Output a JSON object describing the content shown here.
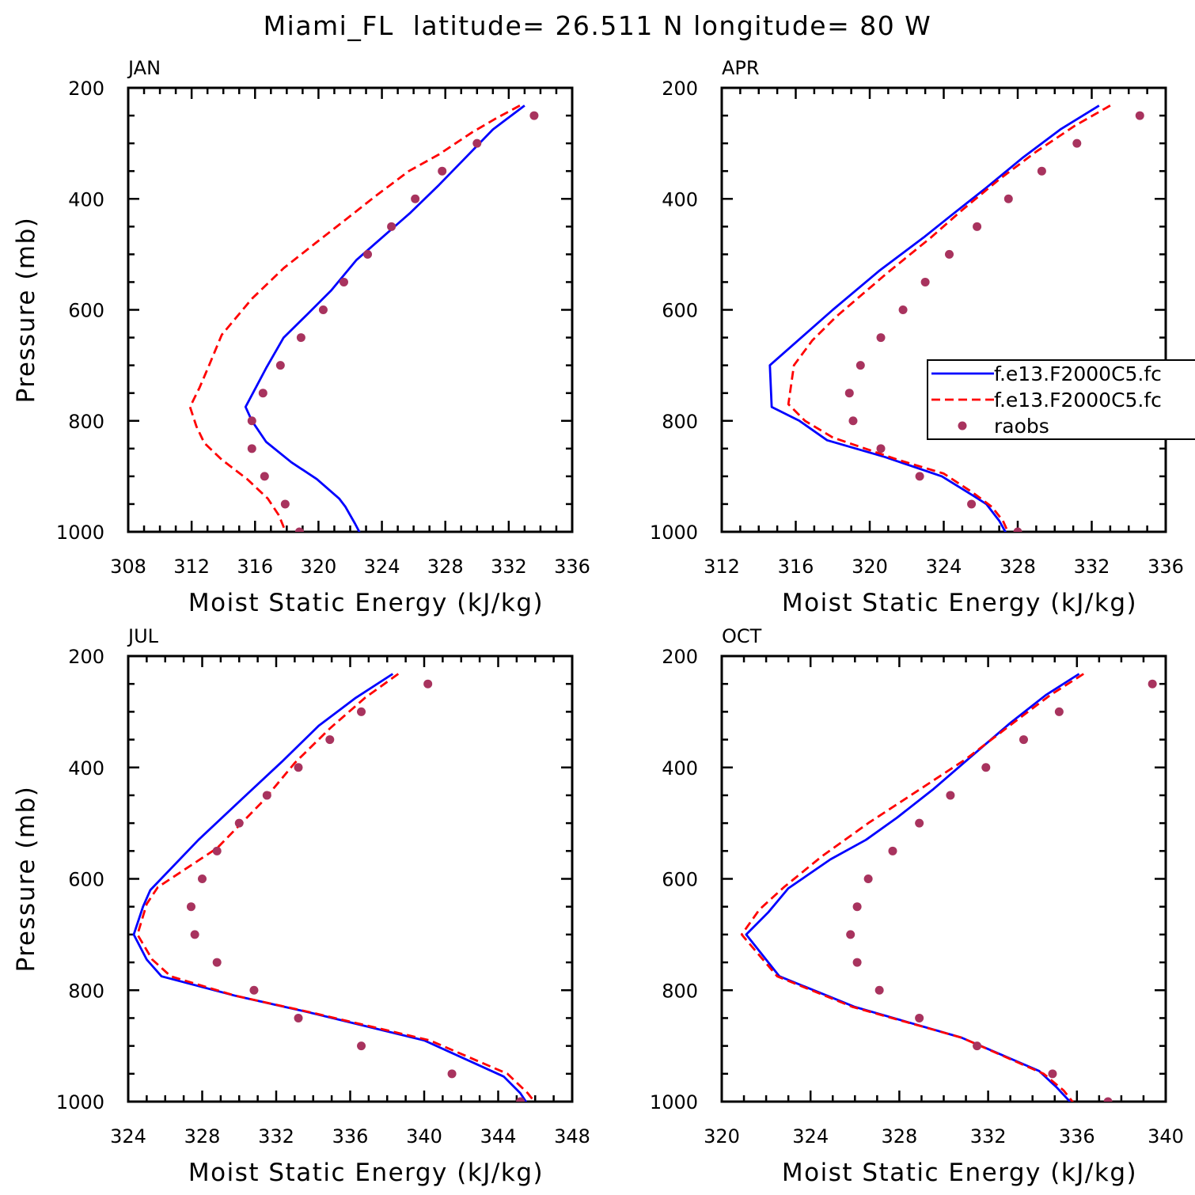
{
  "figure": {
    "title": "Miami_FL  latitude= 26.511 N longitude= 80 W"
  },
  "colors": {
    "model_a": "#0000ff",
    "model_b": "#ff0000",
    "raobs": "#a8335e",
    "axes": "#000000"
  },
  "legend": {
    "panel": "APR",
    "entries": [
      {
        "label": "f.e13.F2000C5.fc",
        "style": "solid",
        "color": "#0000ff"
      },
      {
        "label": "f.e13.F2000C5.fc",
        "style": "dashed",
        "color": "#ff0000"
      },
      {
        "label": "raobs",
        "style": "marker",
        "color": "#a8335e"
      }
    ]
  },
  "chart_data": [
    {
      "type": "line",
      "panel_label": "JAN",
      "xlabel": "Moist Static Energy (kJ/kg)",
      "ylabel": "Pressure (mb)",
      "xlim": [
        308,
        336
      ],
      "xticks": [
        308,
        312,
        316,
        320,
        324,
        328,
        332,
        336
      ],
      "ylim": [
        1000,
        200
      ],
      "yticks": [
        200,
        400,
        600,
        800,
        1000
      ],
      "y_inverted": true,
      "grid": false,
      "series": [
        {
          "style": "solid",
          "color": "#0000ff",
          "points": [
            [
              333.0,
              232
            ],
            [
              331.0,
              275
            ],
            [
              329.3,
              325
            ],
            [
              327.6,
              375
            ],
            [
              325.8,
              425
            ],
            [
              324.0,
              470
            ],
            [
              322.4,
              510
            ],
            [
              320.8,
              565
            ],
            [
              319.3,
              608
            ],
            [
              317.8,
              650
            ],
            [
              316.7,
              705
            ],
            [
              315.4,
              775
            ],
            [
              315.8,
              800
            ],
            [
              316.7,
              838
            ],
            [
              318.3,
              875
            ],
            [
              319.9,
              905
            ],
            [
              321.3,
              940
            ],
            [
              321.7,
              955
            ],
            [
              322.3,
              985
            ],
            [
              322.8,
              1012
            ]
          ]
        },
        {
          "style": "dashed",
          "color": "#ff0000",
          "points": [
            [
              332.7,
              232
            ],
            [
              331.2,
              255
            ],
            [
              329.7,
              280
            ],
            [
              327.6,
              320
            ],
            [
              325.7,
              350
            ],
            [
              323.6,
              395
            ],
            [
              321.6,
              440
            ],
            [
              319.8,
              480
            ],
            [
              317.8,
              525
            ],
            [
              315.8,
              580
            ],
            [
              313.9,
              645
            ],
            [
              313.1,
              700
            ],
            [
              312.5,
              740
            ],
            [
              311.9,
              775
            ],
            [
              312.3,
              810
            ],
            [
              312.8,
              840
            ],
            [
              313.9,
              870
            ],
            [
              315.5,
              905
            ],
            [
              316.8,
              940
            ],
            [
              317.5,
              970
            ],
            [
              318.1,
              1012
            ]
          ]
        },
        {
          "style": "marker",
          "color": "#a8335e",
          "points": [
            [
              333.6,
              250
            ],
            [
              330.0,
              300
            ],
            [
              327.8,
              350
            ],
            [
              326.1,
              400
            ],
            [
              324.6,
              450
            ],
            [
              323.1,
              500
            ],
            [
              321.6,
              550
            ],
            [
              320.3,
              600
            ],
            [
              318.9,
              650
            ],
            [
              317.6,
              700
            ],
            [
              316.5,
              750
            ],
            [
              315.8,
              800
            ],
            [
              315.8,
              850
            ],
            [
              316.6,
              900
            ],
            [
              317.9,
              950
            ],
            [
              318.8,
              1000
            ]
          ]
        }
      ]
    },
    {
      "type": "line",
      "panel_label": "APR",
      "xlabel": "Moist Static Energy (kJ/kg)",
      "ylabel": "",
      "xlim": [
        312,
        336
      ],
      "xticks": [
        312,
        316,
        320,
        324,
        328,
        332,
        336
      ],
      "ylim": [
        1000,
        200
      ],
      "yticks": [
        200,
        400,
        600,
        800,
        1000
      ],
      "y_inverted": true,
      "grid": false,
      "series": [
        {
          "style": "solid",
          "color": "#0000ff",
          "points": [
            [
              332.4,
              232
            ],
            [
              330.3,
              275
            ],
            [
              328.3,
              325
            ],
            [
              326.3,
              380
            ],
            [
              324.4,
              430
            ],
            [
              322.9,
              470
            ],
            [
              320.5,
              530
            ],
            [
              318.0,
              600
            ],
            [
              316.3,
              650
            ],
            [
              314.6,
              700
            ],
            [
              314.7,
              775
            ],
            [
              316.2,
              800
            ],
            [
              317.7,
              835
            ],
            [
              320.8,
              865
            ],
            [
              323.9,
              900
            ],
            [
              325.6,
              935
            ],
            [
              326.3,
              950
            ],
            [
              327.0,
              980
            ],
            [
              327.5,
              1010
            ]
          ]
        },
        {
          "style": "dashed",
          "color": "#ff0000",
          "points": [
            [
              333.0,
              232
            ],
            [
              331.1,
              268
            ],
            [
              329.0,
              315
            ],
            [
              327.0,
              365
            ],
            [
              325.0,
              420
            ],
            [
              323.3,
              470
            ],
            [
              320.9,
              535
            ],
            [
              318.2,
              612
            ],
            [
              316.9,
              655
            ],
            [
              315.9,
              700
            ],
            [
              315.6,
              770
            ],
            [
              316.5,
              800
            ],
            [
              318.0,
              830
            ],
            [
              321.5,
              870
            ],
            [
              324.0,
              895
            ],
            [
              325.6,
              930
            ],
            [
              326.6,
              955
            ],
            [
              327.2,
              980
            ],
            [
              327.6,
              1010
            ]
          ]
        },
        {
          "style": "marker",
          "color": "#a8335e",
          "points": [
            [
              334.6,
              250
            ],
            [
              331.2,
              300
            ],
            [
              329.3,
              350
            ],
            [
              327.5,
              400
            ],
            [
              325.8,
              450
            ],
            [
              324.3,
              500
            ],
            [
              323.0,
              550
            ],
            [
              321.8,
              600
            ],
            [
              320.6,
              650
            ],
            [
              319.5,
              700
            ],
            [
              318.9,
              750
            ],
            [
              319.1,
              800
            ],
            [
              320.6,
              850
            ],
            [
              322.7,
              900
            ],
            [
              325.5,
              950
            ],
            [
              328.0,
              1000
            ]
          ]
        }
      ]
    },
    {
      "type": "line",
      "panel_label": "JUL",
      "xlabel": "Moist Static Energy (kJ/kg)",
      "ylabel": "Pressure (mb)",
      "xlim": [
        324,
        348
      ],
      "xticks": [
        324,
        328,
        332,
        336,
        340,
        344,
        348
      ],
      "ylim": [
        1000,
        200
      ],
      "yticks": [
        200,
        400,
        600,
        800,
        1000
      ],
      "y_inverted": true,
      "grid": false,
      "series": [
        {
          "style": "solid",
          "color": "#0000ff",
          "points": [
            [
              338.3,
              232
            ],
            [
              336.3,
              275
            ],
            [
              334.3,
              325
            ],
            [
              332.3,
              390
            ],
            [
              330.2,
              455
            ],
            [
              327.8,
              530
            ],
            [
              325.2,
              620
            ],
            [
              324.8,
              650
            ],
            [
              324.3,
              700
            ],
            [
              325.0,
              745
            ],
            [
              325.8,
              775
            ],
            [
              329.8,
              810
            ],
            [
              333.8,
              840
            ],
            [
              340.0,
              890
            ],
            [
              344.3,
              955
            ],
            [
              345.2,
              985
            ],
            [
              345.7,
              1010
            ]
          ]
        },
        {
          "style": "dashed",
          "color": "#ff0000",
          "points": [
            [
              338.6,
              232
            ],
            [
              336.8,
              275
            ],
            [
              334.9,
              330
            ],
            [
              333.0,
              392
            ],
            [
              331.3,
              460
            ],
            [
              328.8,
              545
            ],
            [
              325.6,
              615
            ],
            [
              325.0,
              645
            ],
            [
              324.5,
              700
            ],
            [
              325.3,
              745
            ],
            [
              326.3,
              775
            ],
            [
              329.8,
              810
            ],
            [
              333.9,
              840
            ],
            [
              340.3,
              890
            ],
            [
              344.5,
              950
            ],
            [
              345.6,
              985
            ],
            [
              346.2,
              1010
            ]
          ]
        },
        {
          "style": "marker",
          "color": "#a8335e",
          "points": [
            [
              340.2,
              250
            ],
            [
              336.6,
              300
            ],
            [
              334.9,
              350
            ],
            [
              333.2,
              400
            ],
            [
              331.5,
              450
            ],
            [
              330.0,
              500
            ],
            [
              328.8,
              550
            ],
            [
              328.0,
              600
            ],
            [
              327.4,
              650
            ],
            [
              327.6,
              700
            ],
            [
              328.8,
              750
            ],
            [
              330.8,
              800
            ],
            [
              333.2,
              850
            ],
            [
              336.6,
              900
            ],
            [
              341.5,
              950
            ],
            [
              345.2,
              1000
            ]
          ]
        }
      ]
    },
    {
      "type": "line",
      "panel_label": "OCT",
      "xlabel": "Moist Static Energy (kJ/kg)",
      "ylabel": "",
      "xlim": [
        320,
        340
      ],
      "xticks": [
        320,
        324,
        328,
        332,
        336,
        340
      ],
      "ylim": [
        1000,
        200
      ],
      "yticks": [
        200,
        400,
        600,
        800,
        1000
      ],
      "y_inverted": true,
      "grid": false,
      "series": [
        {
          "style": "solid",
          "color": "#0000ff",
          "points": [
            [
              336.1,
              232
            ],
            [
              334.6,
              270
            ],
            [
              333.0,
              320
            ],
            [
              331.1,
              385
            ],
            [
              329.5,
              440
            ],
            [
              327.9,
              490
            ],
            [
              326.5,
              530
            ],
            [
              324.9,
              565
            ],
            [
              323.0,
              617
            ],
            [
              322.1,
              660
            ],
            [
              321.1,
              700
            ],
            [
              322.6,
              775
            ],
            [
              326.0,
              830
            ],
            [
              330.8,
              885
            ],
            [
              334.3,
              945
            ],
            [
              335.1,
              975
            ],
            [
              335.8,
              1005
            ]
          ]
        },
        {
          "style": "dashed",
          "color": "#ff0000",
          "points": [
            [
              336.3,
              232
            ],
            [
              334.8,
              270
            ],
            [
              333.2,
              318
            ],
            [
              331.0,
              385
            ],
            [
              328.9,
              440
            ],
            [
              326.6,
              500
            ],
            [
              324.5,
              560
            ],
            [
              322.8,
              615
            ],
            [
              321.7,
              655
            ],
            [
              320.9,
              700
            ],
            [
              322.5,
              775
            ],
            [
              325.9,
              830
            ],
            [
              330.8,
              885
            ],
            [
              334.5,
              950
            ],
            [
              335.4,
              980
            ],
            [
              335.9,
              1005
            ]
          ]
        },
        {
          "style": "marker",
          "color": "#a8335e",
          "points": [
            [
              339.4,
              250
            ],
            [
              335.2,
              300
            ],
            [
              333.6,
              350
            ],
            [
              331.9,
              400
            ],
            [
              330.3,
              450
            ],
            [
              328.9,
              500
            ],
            [
              327.7,
              550
            ],
            [
              326.6,
              600
            ],
            [
              326.1,
              650
            ],
            [
              325.8,
              700
            ],
            [
              326.1,
              750
            ],
            [
              327.1,
              800
            ],
            [
              328.9,
              850
            ],
            [
              331.5,
              900
            ],
            [
              334.9,
              950
            ],
            [
              337.4,
              1000
            ]
          ]
        }
      ]
    }
  ]
}
